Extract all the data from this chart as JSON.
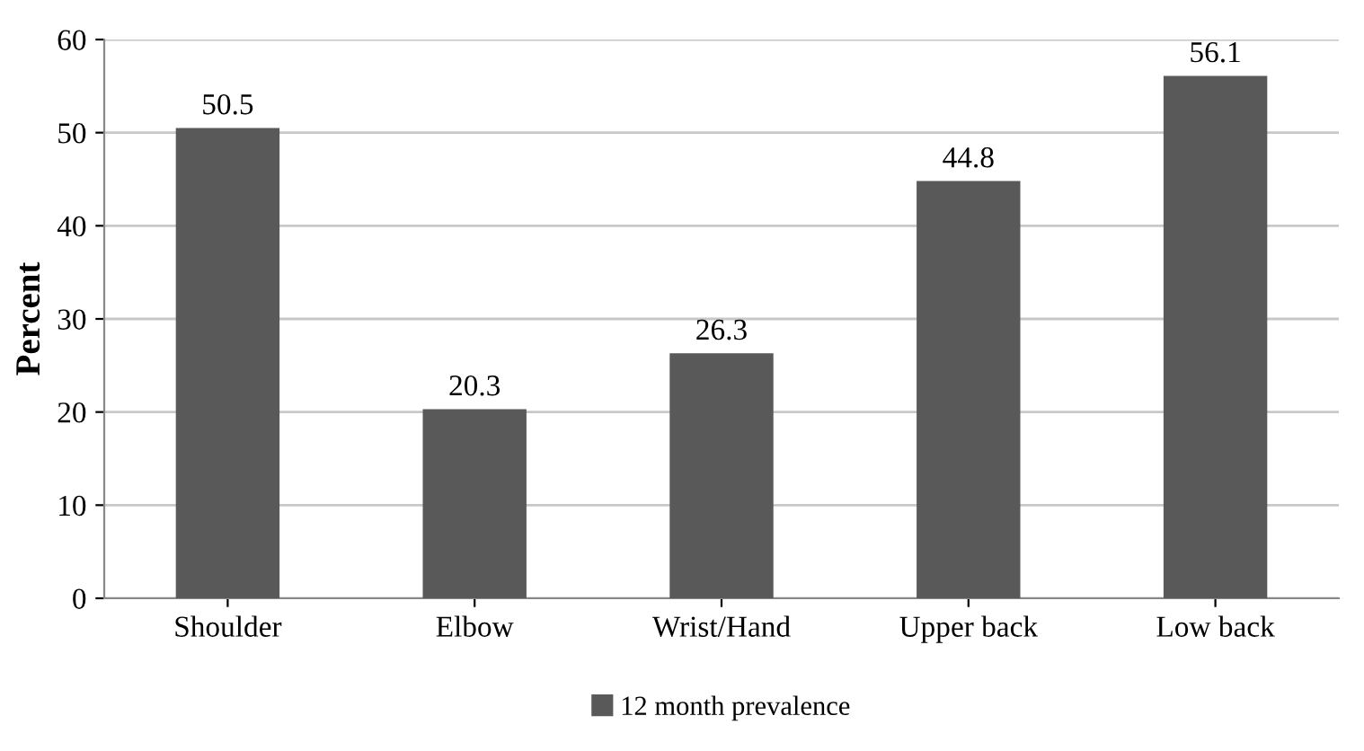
{
  "chart_data": {
    "type": "bar",
    "ylabel": "Percent",
    "categories": [
      "Shoulder",
      "Elbow",
      "Wrist/Hand",
      "Upper back",
      "Low back"
    ],
    "series": [
      {
        "name": "12 month prevalence",
        "color": "#595959",
        "values": [
          50.5,
          20.3,
          26.3,
          44.8,
          56.1
        ]
      }
    ],
    "ylim": [
      0,
      60
    ],
    "yticks": [
      0,
      10,
      20,
      30,
      40,
      50,
      60
    ],
    "grid": "y",
    "legend": "bottom",
    "data_labels": true
  }
}
